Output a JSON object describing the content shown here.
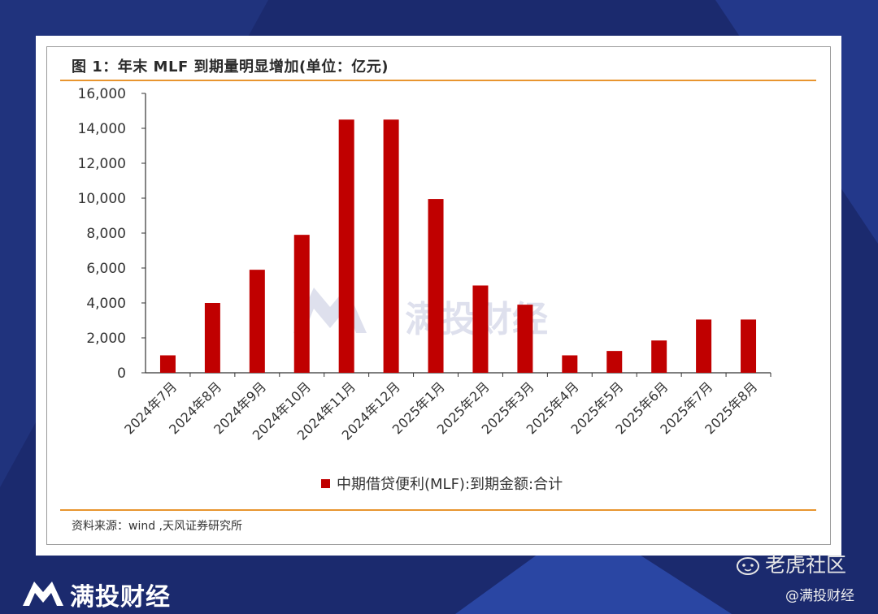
{
  "page": {
    "bg_color": "#1b2a6e",
    "accent_line_color": "#e8952f",
    "bar_color": "#c00000"
  },
  "figure": {
    "title": "图 1：年末 MLF 到期量明显增加(单位：亿元)",
    "source": "资料来源：wind ,天风证券研究所"
  },
  "watermark": {
    "text": "满投财经",
    "logo_icon": "mantou-m-logo-icon"
  },
  "footer": {
    "brand": "满投财经",
    "brand_icon": "mantou-m-logo-icon",
    "community": "老虎社区",
    "community_icon": "tiger-face-icon",
    "handle": "@满投财经"
  },
  "chart_data": {
    "type": "bar",
    "categories": [
      "2024年7月",
      "2024年8月",
      "2024年9月",
      "2024年10月",
      "2024年11月",
      "2024年12月",
      "2025年1月",
      "2025年2月",
      "2025年3月",
      "2025年4月",
      "2025年5月",
      "2025年6月",
      "2025年7月",
      "2025年8月"
    ],
    "series": [
      {
        "name": "中期借贷便利(MLF):到期金额:合计",
        "values": [
          1000,
          4000,
          5900,
          7900,
          14500,
          14500,
          9950,
          5000,
          3900,
          1000,
          1250,
          1850,
          3050,
          3050
        ]
      }
    ],
    "title": "图 1：年末 MLF 到期量明显增加(单位：亿元)",
    "xlabel": "",
    "ylabel": "",
    "ylim": [
      0,
      16000
    ],
    "yticks": [
      "0",
      "2,000",
      "4,000",
      "6,000",
      "8,000",
      "10,000",
      "12,000",
      "14,000",
      "16,000"
    ],
    "grid": false,
    "legend": "bottom-center"
  }
}
